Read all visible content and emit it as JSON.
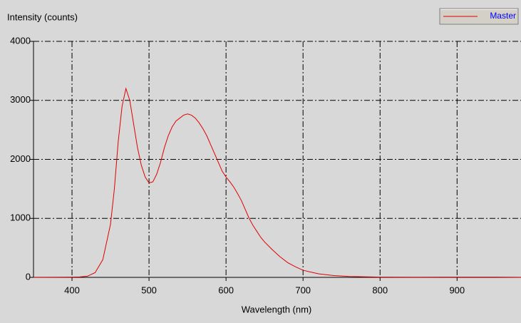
{
  "chart_data": {
    "type": "line",
    "y_label": "Intensity (counts)",
    "x_label": "Wavelength (nm)",
    "x": [
      350,
      380,
      400,
      410,
      420,
      430,
      440,
      450,
      455,
      460,
      465,
      470,
      475,
      480,
      485,
      490,
      495,
      500,
      505,
      510,
      515,
      520,
      525,
      530,
      535,
      540,
      545,
      550,
      555,
      560,
      565,
      570,
      575,
      580,
      585,
      590,
      595,
      600,
      605,
      610,
      615,
      620,
      625,
      630,
      635,
      640,
      645,
      650,
      660,
      670,
      680,
      690,
      700,
      720,
      740,
      760,
      800,
      850,
      900,
      950,
      983
    ],
    "series": [
      {
        "name": "Master",
        "color": "#e00000",
        "values": [
          2,
          3,
          5,
          8,
          20,
          80,
          300,
          900,
          1500,
          2300,
          2900,
          3200,
          3000,
          2600,
          2200,
          1900,
          1700,
          1600,
          1620,
          1750,
          1950,
          2200,
          2400,
          2550,
          2650,
          2700,
          2750,
          2770,
          2750,
          2700,
          2620,
          2520,
          2400,
          2250,
          2100,
          1950,
          1800,
          1700,
          1620,
          1530,
          1420,
          1300,
          1150,
          1000,
          880,
          780,
          680,
          600,
          470,
          350,
          250,
          180,
          120,
          60,
          30,
          15,
          5,
          3,
          5,
          4,
          2
        ]
      }
    ],
    "xlim": [
      350,
      983
    ],
    "ylim": [
      0,
      4000
    ],
    "xticks": [
      400,
      500,
      600,
      700,
      800,
      900
    ],
    "yticks": [
      0,
      1000,
      2000,
      3000,
      4000
    ],
    "grid": true,
    "legend": "top-right"
  }
}
